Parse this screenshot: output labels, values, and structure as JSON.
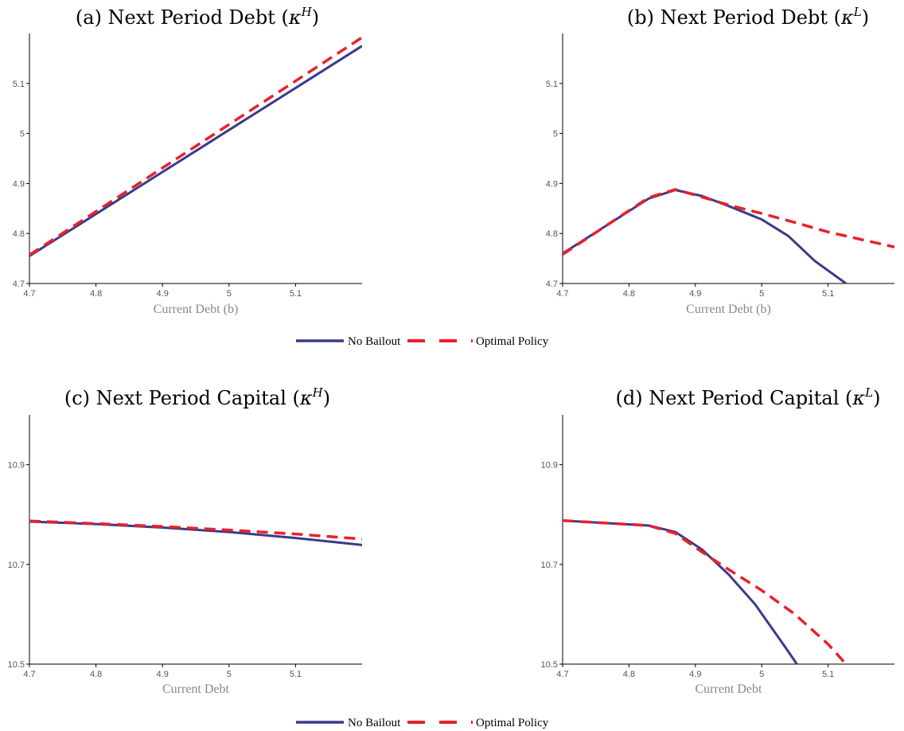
{
  "legend": [
    {
      "label": "No Bailout",
      "color": "#3b3a8a",
      "dash": "solid"
    },
    {
      "label": "Optimal Policy",
      "color": "#e8212b",
      "dash": "dashed"
    }
  ],
  "chart_data": [
    {
      "type": "line",
      "title": "(a) Next Period Debt (",
      "title_kappa": "κ",
      "title_sup": "H",
      "title_close": ")",
      "xlabel": "Current Debt (b)",
      "xlim": [
        4.7,
        5.2
      ],
      "ylim": [
        4.7,
        5.2
      ],
      "xticks": [
        4.7,
        4.8,
        4.9,
        5,
        5.1
      ],
      "yticks": [
        4.7,
        4.8,
        4.9,
        5,
        5.1
      ],
      "xtick_labels": [
        "4.7",
        "4.8",
        "4.9",
        "5",
        "5.1"
      ],
      "ytick_labels": [
        "4.7",
        "4.8",
        "4.9",
        "5",
        "5.1"
      ],
      "series": [
        {
          "name": "No Bailout",
          "x": [
            4.7,
            4.8,
            4.9,
            5.0,
            5.1,
            5.2
          ],
          "y": [
            4.755,
            4.839,
            4.923,
            5.007,
            5.091,
            5.175
          ]
        },
        {
          "name": "Optimal Policy",
          "x": [
            4.7,
            4.8,
            4.9,
            5.0,
            5.1,
            5.2
          ],
          "y": [
            4.757,
            4.844,
            4.931,
            5.018,
            5.105,
            5.192
          ]
        }
      ]
    },
    {
      "type": "line",
      "title": "(b) Next Period Debt (",
      "title_kappa": "κ",
      "title_sup": "L",
      "title_close": ")",
      "xlabel": "Current Debt (b)",
      "xlim": [
        4.7,
        5.2
      ],
      "ylim": [
        4.7,
        5.2
      ],
      "xticks": [
        4.7,
        4.8,
        4.9,
        5,
        5.1
      ],
      "yticks": [
        4.7,
        4.8,
        4.9,
        5,
        5.1
      ],
      "xtick_labels": [
        "4.7",
        "4.8",
        "4.9",
        "5",
        "5.1"
      ],
      "ytick_labels": [
        "4.7",
        "4.8",
        "4.9",
        "5",
        "5.1"
      ],
      "series": [
        {
          "name": "No Bailout",
          "x": [
            4.7,
            4.83,
            4.87,
            4.91,
            4.95,
            5.0,
            5.04,
            5.08,
            5.127
          ],
          "y": [
            4.76,
            4.87,
            4.887,
            4.875,
            4.855,
            4.828,
            4.795,
            4.745,
            4.7
          ]
        },
        {
          "name": "Optimal Policy",
          "x": [
            4.7,
            4.83,
            4.87,
            4.91,
            4.95,
            5.0,
            5.05,
            5.1,
            5.2
          ],
          "y": [
            4.758,
            4.872,
            4.888,
            4.873,
            4.857,
            4.84,
            4.822,
            4.803,
            4.773
          ]
        }
      ]
    },
    {
      "type": "line",
      "title": "(c) Next Period Capital (",
      "title_kappa": "κ",
      "title_sup": "H",
      "title_close": ")",
      "xlabel": "Current Debt",
      "xlim": [
        4.7,
        5.2
      ],
      "ylim": [
        10.5,
        11.0
      ],
      "xticks": [
        4.7,
        4.8,
        4.9,
        5,
        5.1
      ],
      "yticks": [
        10.5,
        10.7,
        10.9
      ],
      "xtick_labels": [
        "4.7",
        "4.8",
        "4.9",
        "5",
        "5.1"
      ],
      "ytick_labels": [
        "10.5",
        "10.7",
        "10.9"
      ],
      "series": [
        {
          "name": "No Bailout",
          "x": [
            4.7,
            4.8,
            4.9,
            5.0,
            5.1,
            5.2
          ],
          "y": [
            10.786,
            10.781,
            10.774,
            10.765,
            10.753,
            10.739
          ]
        },
        {
          "name": "Optimal Policy",
          "x": [
            4.7,
            4.8,
            4.9,
            5.0,
            5.1,
            5.2
          ],
          "y": [
            10.787,
            10.782,
            10.776,
            10.769,
            10.761,
            10.751
          ]
        }
      ]
    },
    {
      "type": "line",
      "title": "(d) Next Period Capital (",
      "title_kappa": "κ",
      "title_sup": "L",
      "title_close": ")",
      "xlabel": "Current Debt",
      "xlim": [
        4.7,
        5.2
      ],
      "ylim": [
        10.5,
        11.0
      ],
      "xticks": [
        4.7,
        4.8,
        4.9,
        5,
        5.1
      ],
      "yticks": [
        10.5,
        10.7,
        10.9
      ],
      "xtick_labels": [
        "4.7",
        "4.8",
        "4.9",
        "5",
        "5.1"
      ],
      "ytick_labels": [
        "10.5",
        "10.7",
        "10.9"
      ],
      "series": [
        {
          "name": "No Bailout",
          "x": [
            4.7,
            4.83,
            4.87,
            4.91,
            4.95,
            4.99,
            5.035,
            5.053
          ],
          "y": [
            10.788,
            10.778,
            10.765,
            10.73,
            10.68,
            10.62,
            10.535,
            10.5
          ]
        },
        {
          "name": "Optimal Policy",
          "x": [
            4.7,
            4.83,
            4.87,
            4.91,
            4.95,
            5.0,
            5.05,
            5.1,
            5.127
          ],
          "y": [
            10.788,
            10.778,
            10.762,
            10.725,
            10.69,
            10.648,
            10.6,
            10.54,
            10.5
          ]
        }
      ]
    }
  ]
}
